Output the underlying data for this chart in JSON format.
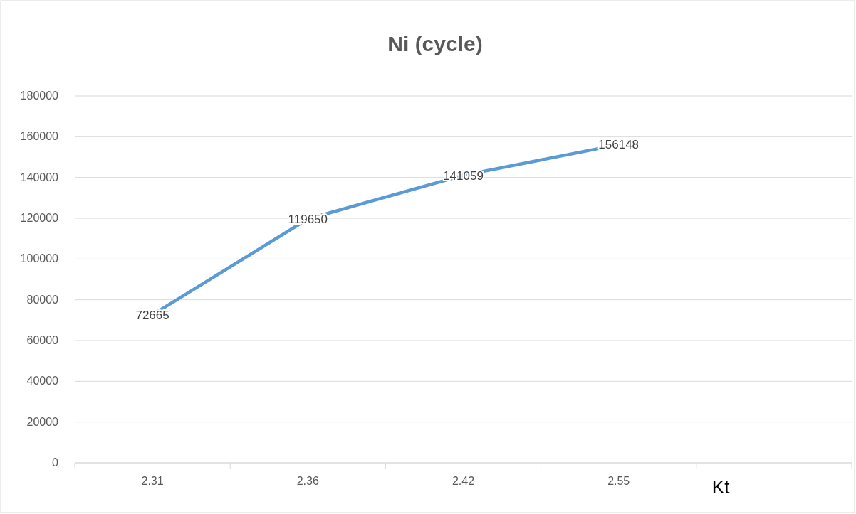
{
  "chart_data": {
    "type": "line",
    "title": "Ni (cycle)",
    "xlabel": "Kt",
    "categories": [
      "2.31",
      "2.36",
      "2.42",
      "2.55",
      null
    ],
    "series": [
      {
        "color": "#5b9bd5",
        "values": [
          72665,
          119650,
          141059,
          156148,
          null
        ]
      }
    ],
    "ylim": [
      0,
      180000
    ],
    "yticks": [
      0,
      20000,
      40000,
      60000,
      80000,
      100000,
      120000,
      140000,
      160000,
      180000
    ],
    "grid": "y",
    "data_labels": true,
    "marker": "none",
    "line_style": "solid"
  }
}
